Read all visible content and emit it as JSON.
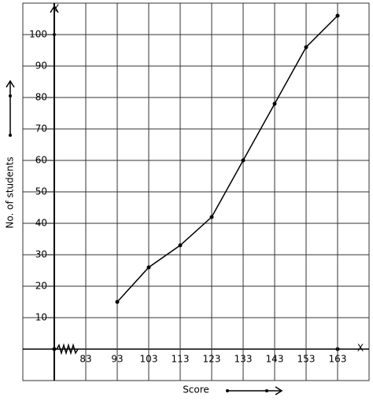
{
  "chart_data": {
    "type": "line",
    "x_label": "Score",
    "y_label": "No. of students",
    "x_axis_name": "X",
    "y_axis_name": "Y",
    "x": [
      93,
      103,
      113,
      123,
      133,
      143,
      153,
      163
    ],
    "series": [
      {
        "color": "#000000",
        "values": [
          15,
          26,
          33,
          42,
          60,
          78,
          96,
          106
        ]
      }
    ],
    "xlim": [
      63,
      173
    ],
    "ylim": [
      -10,
      110
    ],
    "xticks": [
      83,
      93,
      103,
      113,
      123,
      133,
      143,
      153,
      163
    ],
    "yticks": [
      10,
      20,
      30,
      40,
      50,
      60,
      70,
      80,
      90,
      100
    ],
    "grid": true
  }
}
